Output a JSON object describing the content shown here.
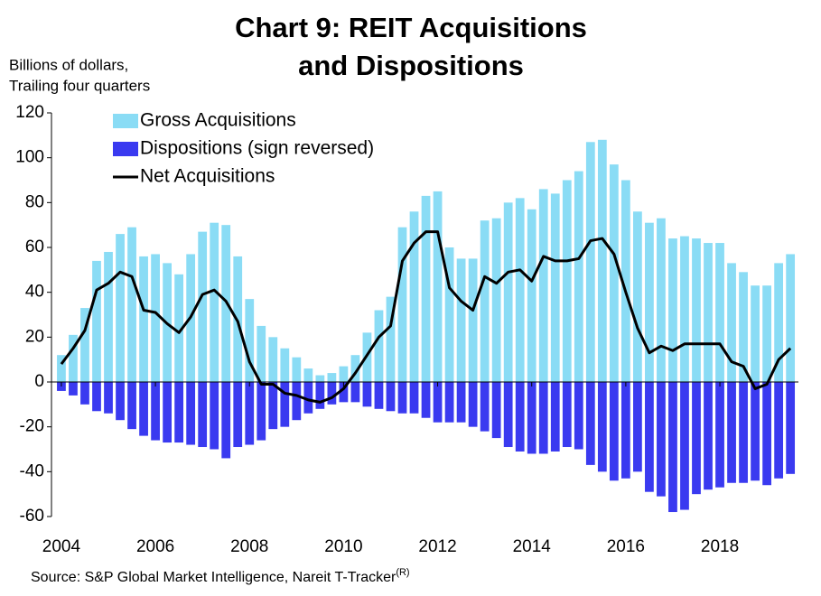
{
  "chart_data": {
    "type": "bar_line",
    "title": [
      "Chart 9: REIT Acquisitions",
      "and Dispositions"
    ],
    "y_label": [
      "Billions of dollars,",
      "Trailing four quarters"
    ],
    "source": "Source: S&P Global Market Intelligence, Nareit T-Tracker",
    "source_mark": "(R)",
    "x": [
      2004,
      2004.25,
      2004.5,
      2004.75,
      2005,
      2005.25,
      2005.5,
      2005.75,
      2006,
      2006.25,
      2006.5,
      2006.75,
      2007,
      2007.25,
      2007.5,
      2007.75,
      2008,
      2008.25,
      2008.5,
      2008.75,
      2009,
      2009.25,
      2009.5,
      2009.75,
      2010,
      2010.25,
      2010.5,
      2010.75,
      2011,
      2011.25,
      2011.5,
      2011.75,
      2012,
      2012.25,
      2012.5,
      2012.75,
      2013,
      2013.25,
      2013.5,
      2013.75,
      2014,
      2014.25,
      2014.5,
      2014.75,
      2015,
      2015.25,
      2015.5,
      2015.75,
      2016,
      2016.25,
      2016.5,
      2016.75,
      2017,
      2017.25,
      2017.5,
      2017.75,
      2018,
      2018.25,
      2018.5,
      2018.75,
      2019,
      2019.25,
      2019.5
    ],
    "series": [
      {
        "name": "Gross Acquisitions",
        "kind": "bar",
        "color": "#8adcf5",
        "values": [
          12,
          21,
          33,
          54,
          58,
          66,
          69,
          56,
          57,
          53,
          48,
          57,
          67,
          71,
          70,
          56,
          37,
          25,
          20,
          15,
          11,
          6,
          3,
          4,
          7,
          12,
          22,
          32,
          38,
          69,
          76,
          83,
          85,
          60,
          55,
          55,
          72,
          73,
          80,
          82,
          77,
          86,
          84,
          90,
          94,
          107,
          108,
          97,
          90,
          76,
          71,
          73,
          64,
          65,
          64,
          62,
          62,
          53,
          49,
          43,
          43,
          53,
          57
        ]
      },
      {
        "name": "Dispositions (sign reversed)",
        "kind": "bar",
        "color": "#3a3af0",
        "values": [
          -4,
          -6,
          -10,
          -13,
          -14,
          -17,
          -21,
          -24,
          -26,
          -27,
          -27,
          -28,
          -29,
          -30,
          -34,
          -29,
          -28,
          -26,
          -21,
          -20,
          -17,
          -14,
          -12,
          -10,
          -9,
          -9,
          -11,
          -12,
          -13,
          -14,
          -14,
          -16,
          -18,
          -18,
          -18,
          -20,
          -22,
          -25,
          -29,
          -31,
          -32,
          -32,
          -31,
          -29,
          -30,
          -37,
          -40,
          -44,
          -43,
          -40,
          -49,
          -51,
          -58,
          -57,
          -50,
          -48,
          -47,
          -45,
          -45,
          -44,
          -46,
          -43,
          -41
        ]
      },
      {
        "name": "Net Acquisitions",
        "kind": "line",
        "color": "#000000",
        "values": [
          8,
          15,
          23,
          41,
          44,
          49,
          47,
          32,
          31,
          26,
          22,
          29,
          39,
          41,
          36,
          27,
          9,
          -1,
          -1,
          -5,
          -6,
          -8,
          -9,
          -7,
          -3,
          4,
          12,
          20,
          25,
          54,
          62,
          67,
          67,
          42,
          36,
          32,
          47,
          44,
          49,
          50,
          45,
          56,
          54,
          54,
          55,
          63,
          64,
          57,
          40,
          24,
          13,
          16,
          14,
          17,
          17,
          17,
          17,
          9,
          7,
          -3,
          -1,
          10,
          15
        ]
      }
    ],
    "xlim": [
      2003.79,
      2019.67
    ],
    "xticks": [
      2004,
      2006,
      2008,
      2010,
      2012,
      2014,
      2016,
      2018
    ],
    "ylim": [
      -60,
      120
    ],
    "yticks": [
      -60,
      -40,
      -20,
      0,
      20,
      40,
      60,
      80,
      100,
      120
    ],
    "legend": "upper left"
  }
}
